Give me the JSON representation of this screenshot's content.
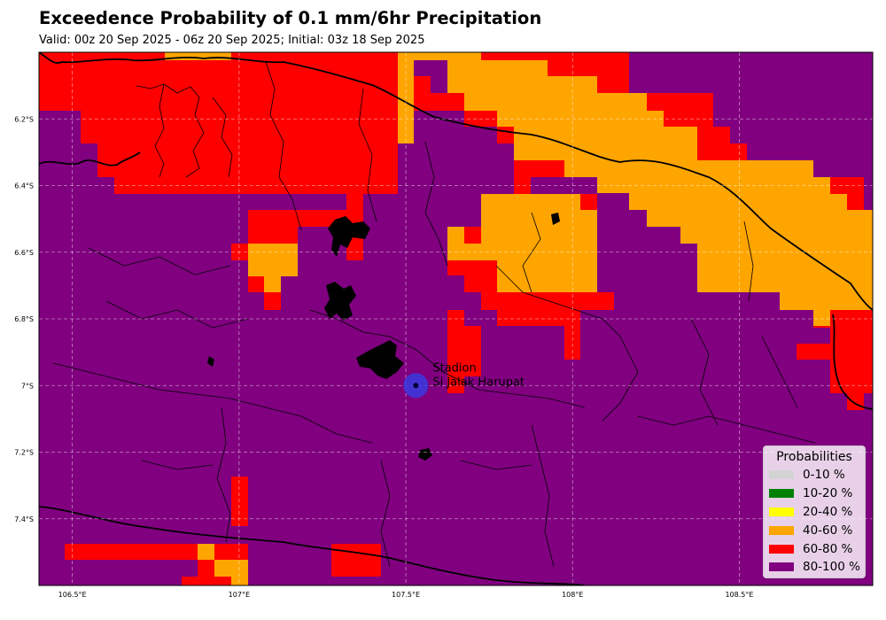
{
  "header": {
    "title": "Exceedence Probability of 0.1 mm/6hr Precipitation",
    "subtitle": "Valid: 00z 20 Sep 2025 - 06z 20 Sep 2025; Initial: 03z 18 Sep 2025"
  },
  "map": {
    "lon_range": [
      106.4,
      108.9
    ],
    "lat_range": [
      -7.6,
      -6.0
    ],
    "x_ticks": [
      {
        "value": 106.5,
        "label": "106.5°E"
      },
      {
        "value": 107.0,
        "label": "107°E"
      },
      {
        "value": 107.5,
        "label": "107.5°E"
      },
      {
        "value": 108.0,
        "label": "108°E"
      },
      {
        "value": 108.5,
        "label": "108.5°E"
      }
    ],
    "y_ticks": [
      {
        "value": -6.2,
        "label": "6.2°S"
      },
      {
        "value": -6.4,
        "label": "6.4°S"
      },
      {
        "value": -6.6,
        "label": "6.6°S"
      },
      {
        "value": -6.8,
        "label": "6.8°S"
      },
      {
        "value": -7.0,
        "label": "7°S"
      },
      {
        "value": -7.2,
        "label": "7.2°S"
      },
      {
        "value": -7.4,
        "label": "7.4°S"
      }
    ],
    "grid": true,
    "station": {
      "name_line1": "Stadion",
      "name_line2": "Si Jalak Harupat",
      "lon": 107.53,
      "lat": -7.0
    }
  },
  "legend": {
    "title": "Probabilities",
    "placement": "lower-right",
    "items": [
      {
        "label": "0-10 %",
        "color": "#d3d3d3"
      },
      {
        "label": "10-20 %",
        "color": "#008000"
      },
      {
        "label": "20-40 %",
        "color": "#ffff00"
      },
      {
        "label": "40-60 %",
        "color": "#ffa500"
      },
      {
        "label": "60-80 %",
        "color": "#ff0000"
      },
      {
        "label": "80-100 %",
        "color": "#800080"
      }
    ]
  },
  "colors": {
    "orange": "#ffa500",
    "red": "#ff0000",
    "purple": "#800080"
  }
}
